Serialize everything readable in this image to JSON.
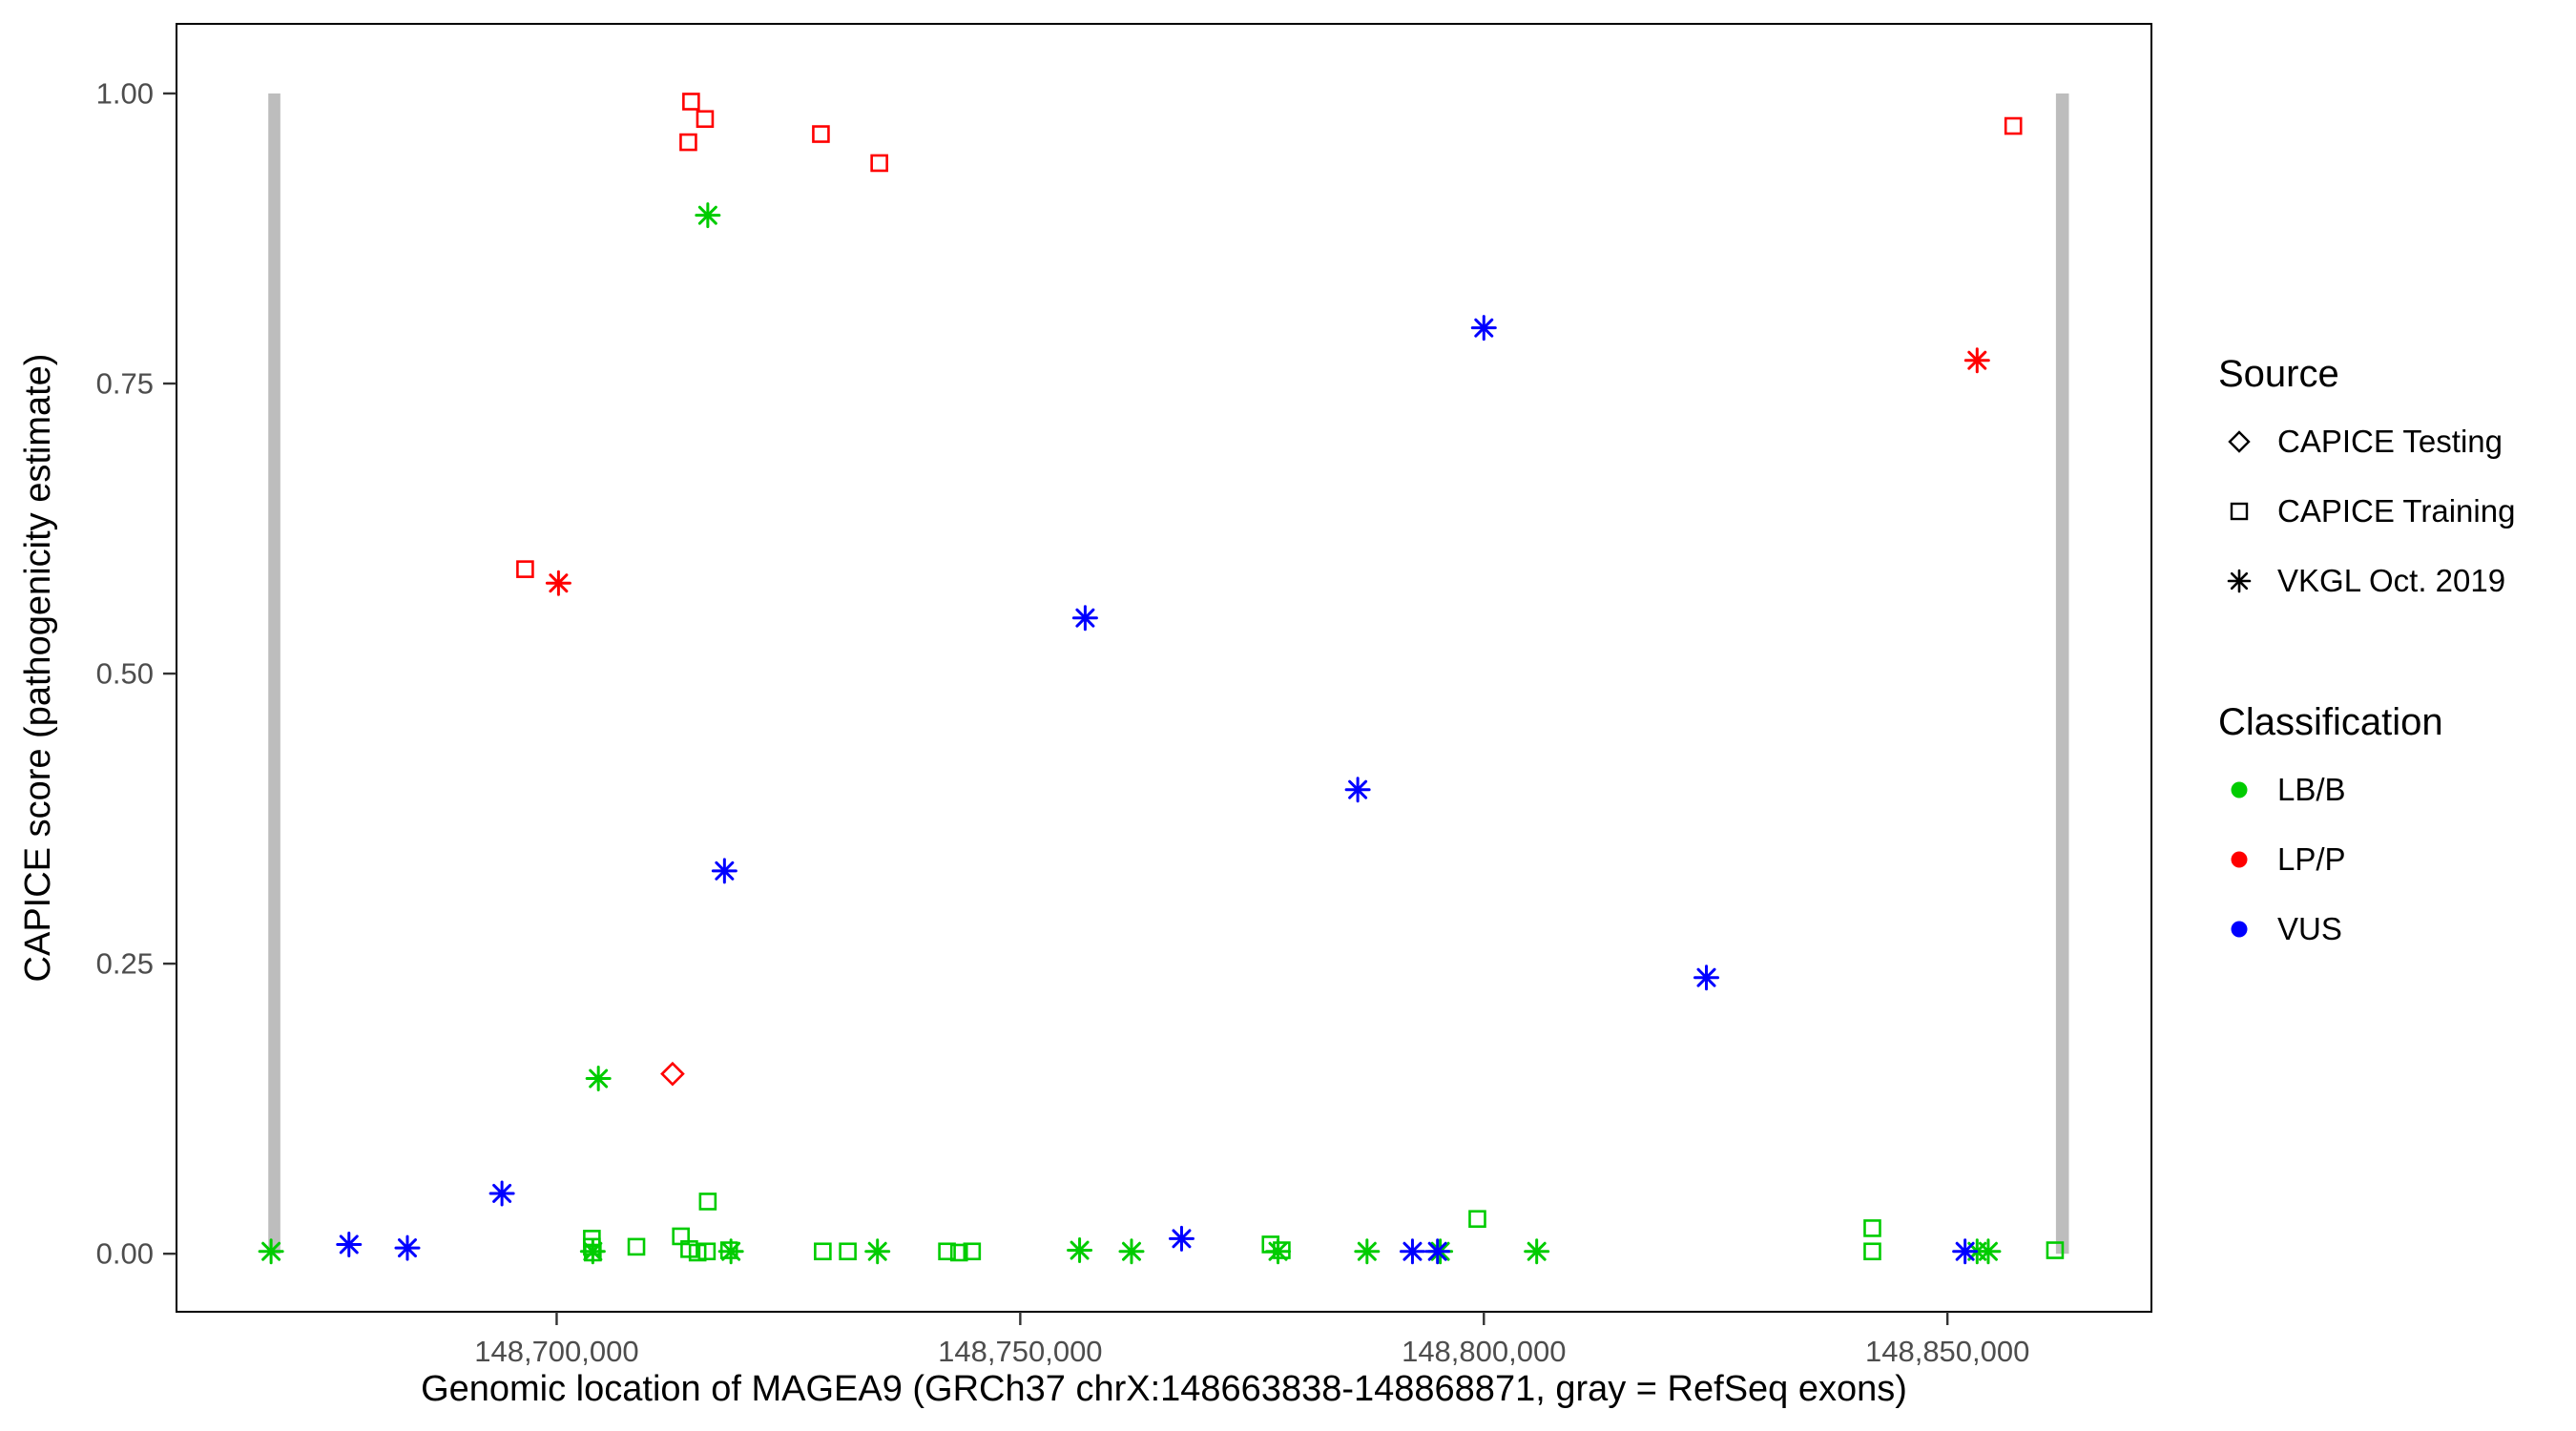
{
  "chart_data": {
    "type": "scatter",
    "title": "",
    "xlabel": "Genomic location of MAGEA9 (GRCh37 chrX:148663838-148868871, gray = RefSeq exons)",
    "ylabel": "CAPICE score (pathogenicity estimate)",
    "xlim": [
      148659000,
      148872000
    ],
    "ylim": [
      -0.05,
      1.06
    ],
    "grid": false,
    "panel_border_color": "#000000",
    "exon_color": "#bdbdbd",
    "exons": [
      {
        "start": 148668900,
        "end": 148670200
      },
      {
        "start": 148861700,
        "end": 148863100
      }
    ],
    "x_ticks": [
      {
        "value": 148700000,
        "label": "148,700,000"
      },
      {
        "value": 148750000,
        "label": "148,750,000"
      },
      {
        "value": 148800000,
        "label": "148,800,000"
      },
      {
        "value": 148850000,
        "label": "148,850,000"
      }
    ],
    "y_ticks": [
      {
        "value": 0.0,
        "label": "0.00"
      },
      {
        "value": 0.25,
        "label": "0.25"
      },
      {
        "value": 0.5,
        "label": "0.50"
      },
      {
        "value": 0.75,
        "label": "0.75"
      },
      {
        "value": 1.0,
        "label": "1.00"
      }
    ],
    "series": [
      {
        "name": "CAPICE Testing / LP-P",
        "source": "CAPICE Testing",
        "classification": "LP/P",
        "shape": "diamond",
        "color": "#ff0000",
        "points": [
          [
            148712500,
            0.155
          ]
        ]
      },
      {
        "name": "CAPICE Training / LP-P",
        "source": "CAPICE Training",
        "classification": "LP/P",
        "shape": "square",
        "color": "#ff0000",
        "points": [
          [
            148714500,
            0.993
          ],
          [
            148716000,
            0.978
          ],
          [
            148714200,
            0.958
          ],
          [
            148728500,
            0.965
          ],
          [
            148734800,
            0.94
          ],
          [
            148696600,
            0.59
          ],
          [
            148857100,
            0.972
          ]
        ]
      },
      {
        "name": "CAPICE Training / LB-B",
        "source": "CAPICE Training",
        "classification": "LB/B",
        "shape": "square",
        "color": "#00cc00",
        "points": [
          [
            148716300,
            0.045
          ],
          [
            148799300,
            0.03
          ],
          [
            148841900,
            0.022
          ],
          [
            148703800,
            0.013
          ],
          [
            148703800,
            0.006
          ],
          [
            148703900,
            0.001
          ],
          [
            148708600,
            0.006
          ],
          [
            148713400,
            0.015
          ],
          [
            148714300,
            0.004
          ],
          [
            148715200,
            0.001
          ],
          [
            148716200,
            0.002
          ],
          [
            148718600,
            0.003
          ],
          [
            148728700,
            0.002
          ],
          [
            148731400,
            0.002
          ],
          [
            148742100,
            0.002
          ],
          [
            148743400,
            0.001
          ],
          [
            148744800,
            0.002
          ],
          [
            148777000,
            0.008
          ],
          [
            148778200,
            0.003
          ],
          [
            148841900,
            0.002
          ],
          [
            148861600,
            0.003
          ]
        ]
      },
      {
        "name": "VKGL Oct. 2019 / LB-B",
        "source": "VKGL Oct. 2019",
        "classification": "LB/B",
        "shape": "asterisk",
        "color": "#00cc00",
        "points": [
          [
            148716300,
            0.895
          ],
          [
            148704500,
            0.151
          ],
          [
            148669200,
            0.002
          ],
          [
            148703900,
            0.002
          ],
          [
            148718800,
            0.002
          ],
          [
            148734600,
            0.002
          ],
          [
            148756400,
            0.003
          ],
          [
            148762000,
            0.002
          ],
          [
            148777800,
            0.002
          ],
          [
            148787400,
            0.002
          ],
          [
            148795300,
            0.002
          ],
          [
            148805700,
            0.002
          ],
          [
            148853200,
            0.002
          ],
          [
            148854400,
            0.002
          ]
        ]
      },
      {
        "name": "VKGL Oct. 2019 / LP-P",
        "source": "VKGL Oct. 2019",
        "classification": "LP/P",
        "shape": "asterisk",
        "color": "#ff0000",
        "points": [
          [
            148700200,
            0.578
          ],
          [
            148853200,
            0.77
          ]
        ]
      },
      {
        "name": "VKGL Oct. 2019 / VUS",
        "source": "VKGL Oct. 2019",
        "classification": "VUS",
        "shape": "asterisk",
        "color": "#0000ff",
        "points": [
          [
            148800000,
            0.798
          ],
          [
            148757000,
            0.548
          ],
          [
            148786400,
            0.4
          ],
          [
            148718100,
            0.33
          ],
          [
            148824000,
            0.238
          ],
          [
            148694100,
            0.052
          ],
          [
            148677600,
            0.008
          ],
          [
            148683900,
            0.005
          ],
          [
            148767400,
            0.013
          ],
          [
            148792300,
            0.002
          ],
          [
            148795000,
            0.002
          ],
          [
            148851900,
            0.002
          ]
        ]
      }
    ],
    "legend": {
      "source_title": "Source",
      "source_items": [
        {
          "label": "CAPICE Testing",
          "shape": "diamond"
        },
        {
          "label": "CAPICE Training",
          "shape": "square"
        },
        {
          "label": "VKGL Oct. 2019",
          "shape": "asterisk"
        }
      ],
      "classification_title": "Classification",
      "classification_items": [
        {
          "label": "LB/B",
          "color": "#00cc00"
        },
        {
          "label": "LP/P",
          "color": "#ff0000"
        },
        {
          "label": "VUS",
          "color": "#0000ff"
        }
      ]
    }
  }
}
